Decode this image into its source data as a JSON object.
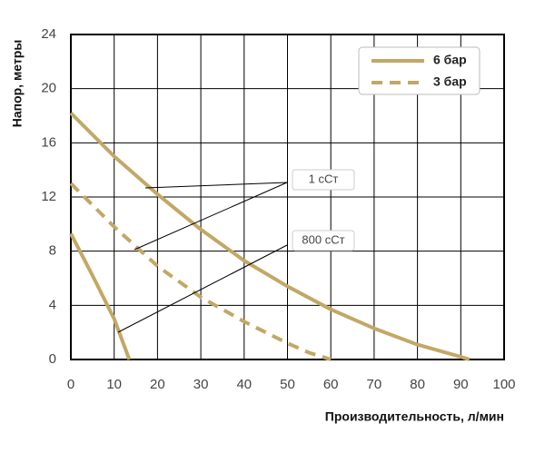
{
  "chart_data": {
    "type": "line",
    "ylabel": "Напор, метры",
    "xlabel": "Производительность, л/мин",
    "xlim": [
      0,
      100
    ],
    "xticks": [
      0,
      10,
      20,
      30,
      40,
      50,
      60,
      70,
      80,
      90,
      100
    ],
    "ylim": [
      0,
      24
    ],
    "yticks": [
      0,
      4,
      8,
      12,
      16,
      20,
      24
    ],
    "grid": true,
    "legend": "upper right",
    "series": [
      {
        "name": "6 бар",
        "color": "#c2a866",
        "dash": false,
        "x": [
          0,
          10,
          20,
          30,
          40,
          50,
          60,
          70,
          80,
          90,
          92,
          null,
          0,
          5,
          10,
          13.5
        ],
        "values": [
          18.2,
          15.0,
          12.2,
          9.6,
          7.3,
          5.4,
          3.7,
          2.3,
          1.1,
          0.2,
          0,
          null,
          9.3,
          6.2,
          3.0,
          0
        ]
      },
      {
        "name": "3 бар",
        "color": "#c2a866",
        "dash": true,
        "x": [
          0,
          10,
          20,
          30,
          40,
          50,
          55,
          60
        ],
        "values": [
          13.0,
          9.8,
          6.9,
          4.6,
          2.8,
          1.2,
          0.5,
          0
        ]
      }
    ],
    "annotations": [
      "1 сСт",
      "800 сСт"
    ]
  }
}
